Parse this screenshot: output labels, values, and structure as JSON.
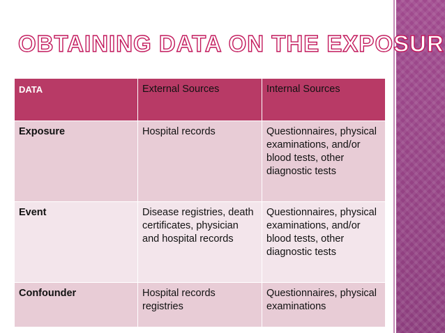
{
  "header": {
    "title": "OBTAINING DATA ON THE EXPOSURE"
  },
  "table": {
    "columns": [
      "DATA",
      "External  Sources",
      "Internal  Sources"
    ],
    "rows": [
      [
        "Exposure",
        "Hospital records",
        "Questionnaires, physical examinations, and/or blood tests, other diagnostic tests"
      ],
      [
        "Event",
        "Disease registries, death certificates, physician and hospital records",
        "Questionnaires, physical examinations, and/or blood tests, other diagnostic tests"
      ],
      [
        "Confounder",
        "Hospital records registries",
        "Questionnaires, physical examinations"
      ]
    ]
  }
}
